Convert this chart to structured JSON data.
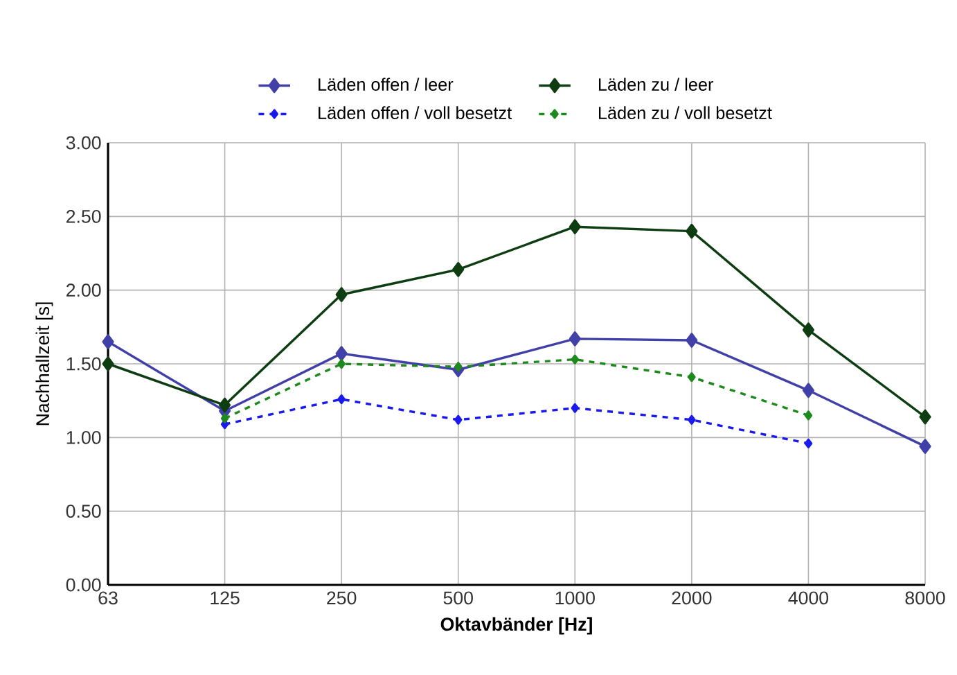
{
  "chart_data": {
    "type": "line",
    "xlabel": "Oktavbänder [Hz]",
    "ylabel": "Nachhallzeit [s]",
    "categories": [
      "63",
      "125",
      "250",
      "500",
      "1000",
      "2000",
      "4000",
      "8000"
    ],
    "series": [
      {
        "name": "Läden offen / leer",
        "color": "#4040a8",
        "line_style": "solid",
        "values": [
          1.65,
          1.18,
          1.57,
          1.46,
          1.67,
          1.66,
          1.32,
          0.94
        ]
      },
      {
        "name": "Läden zu / leer",
        "color": "#0f3d12",
        "line_style": "solid",
        "values": [
          1.5,
          1.22,
          1.97,
          2.14,
          2.43,
          2.4,
          1.73,
          1.14
        ]
      },
      {
        "name": "Läden offen / voll besetzt",
        "color": "#1a1aee",
        "line_style": "dashed",
        "values": [
          null,
          1.09,
          1.26,
          1.12,
          1.2,
          1.12,
          0.96,
          null
        ]
      },
      {
        "name": "Läden zu / voll besetzt",
        "color": "#1e8a1e",
        "line_style": "dashed",
        "values": [
          null,
          1.13,
          1.5,
          1.48,
          1.53,
          1.41,
          1.15,
          null
        ]
      }
    ],
    "ylim": [
      0,
      3
    ],
    "yticks": [
      {
        "value": 0,
        "label": "0.00"
      },
      {
        "value": 0.5,
        "label": "0.50"
      },
      {
        "value": 1,
        "label": "1.00"
      },
      {
        "value": 1.5,
        "label": "1.50"
      },
      {
        "value": 2,
        "label": "2.00"
      },
      {
        "value": 2.5,
        "label": "2.50"
      },
      {
        "value": 3,
        "label": "3.00"
      }
    ],
    "grid": true,
    "legend": "top",
    "marker": "diamond"
  }
}
